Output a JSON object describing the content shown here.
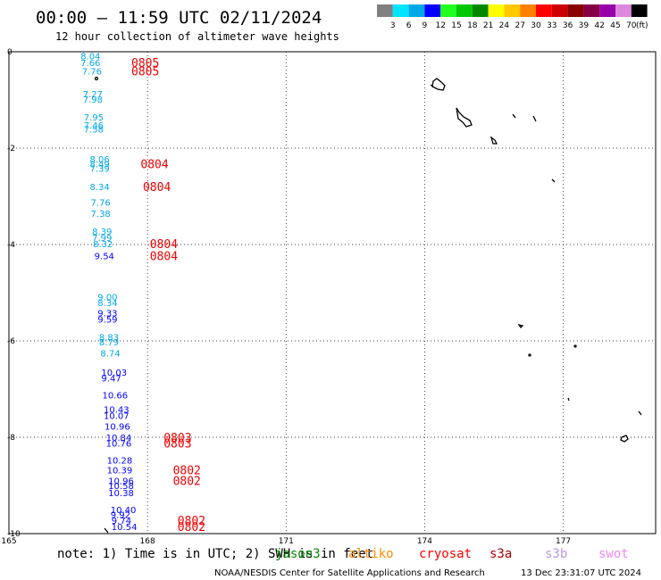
{
  "header": {
    "title": "00:00 — 11:59 UTC 02/11/2024",
    "subtitle": "12 hour collection of altimeter wave heights"
  },
  "colorbar": {
    "colors": [
      "#808080",
      "#00e5ff",
      "#00a8e8",
      "#0000ff",
      "#20ff20",
      "#00c800",
      "#008800",
      "#ffff00",
      "#ffc800",
      "#ff8000",
      "#ff0000",
      "#cc0000",
      "#880000",
      "#880044",
      "#9900aa",
      "#dd88dd",
      "#000000"
    ],
    "labels": [
      "3",
      "6",
      "9",
      "12",
      "15",
      "18",
      "21",
      "24",
      "27",
      "30",
      "33",
      "36",
      "39",
      "42",
      "45",
      "70"
    ],
    "unit": "(ft)"
  },
  "axes": {
    "x_ticks": [
      "165",
      "168",
      "171",
      "174",
      "177"
    ],
    "y_ticks": [
      "0",
      "-2",
      "-4",
      "-6",
      "-8",
      "-10"
    ],
    "lon_range": [
      165,
      179
    ],
    "lat_range": [
      -10,
      0
    ]
  },
  "observations": [
    {
      "lon": 166.55,
      "lat": -0.08,
      "value": "8.04",
      "color": "#00a8e8"
    },
    {
      "lon": 166.55,
      "lat": -0.22,
      "value": "7.66",
      "color": "#00a8e8"
    },
    {
      "lon": 166.58,
      "lat": -0.4,
      "value": "7.76",
      "color": "#00a8e8"
    },
    {
      "lon": 166.6,
      "lat": -0.87,
      "value": "7.27",
      "color": "#00a8e8"
    },
    {
      "lon": 166.6,
      "lat": -0.98,
      "value": "7.98",
      "color": "#00a8e8"
    },
    {
      "lon": 166.62,
      "lat": -1.35,
      "value": "7.95",
      "color": "#00a8e8"
    },
    {
      "lon": 166.62,
      "lat": -1.52,
      "value": "7.46",
      "color": "#00a8e8"
    },
    {
      "lon": 166.62,
      "lat": -1.6,
      "value": "7.58",
      "color": "#00a8e8"
    },
    {
      "lon": 166.75,
      "lat": -2.22,
      "value": "8.06",
      "color": "#00a8e8"
    },
    {
      "lon": 166.75,
      "lat": -2.32,
      "value": "8.49",
      "color": "#00a8e8"
    },
    {
      "lon": 166.75,
      "lat": -2.42,
      "value": "7.39",
      "color": "#00a8e8"
    },
    {
      "lon": 166.75,
      "lat": -2.8,
      "value": "8.34",
      "color": "#00a8e8"
    },
    {
      "lon": 166.77,
      "lat": -3.12,
      "value": "7.76",
      "color": "#00a8e8"
    },
    {
      "lon": 166.77,
      "lat": -3.35,
      "value": "7.38",
      "color": "#00a8e8"
    },
    {
      "lon": 166.8,
      "lat": -3.72,
      "value": "8.39",
      "color": "#00a8e8"
    },
    {
      "lon": 166.8,
      "lat": -3.85,
      "value": "7.99",
      "color": "#00a8e8"
    },
    {
      "lon": 166.82,
      "lat": -3.98,
      "value": "8.32",
      "color": "#00a8e8"
    },
    {
      "lon": 166.85,
      "lat": -4.23,
      "value": "9.54",
      "color": "#0000ff"
    },
    {
      "lon": 166.92,
      "lat": -5.08,
      "value": "9.00",
      "color": "#00a8e8"
    },
    {
      "lon": 166.92,
      "lat": -5.2,
      "value": "8.34",
      "color": "#00a8e8"
    },
    {
      "lon": 166.92,
      "lat": -5.42,
      "value": "9.33",
      "color": "#0000ff"
    },
    {
      "lon": 166.92,
      "lat": -5.55,
      "value": "9.59",
      "color": "#0000ff"
    },
    {
      "lon": 166.95,
      "lat": -5.92,
      "value": "8.83",
      "color": "#00a8e8"
    },
    {
      "lon": 166.95,
      "lat": -6.02,
      "value": "8.79",
      "color": "#00a8e8"
    },
    {
      "lon": 166.98,
      "lat": -6.25,
      "value": "8.74",
      "color": "#00a8e8"
    },
    {
      "lon": 167.0,
      "lat": -6.65,
      "value": "10.03",
      "color": "#0000ff"
    },
    {
      "lon": 167.0,
      "lat": -6.77,
      "value": "9.47",
      "color": "#0000ff"
    },
    {
      "lon": 167.02,
      "lat": -7.12,
      "value": "10.66",
      "color": "#0000ff"
    },
    {
      "lon": 167.05,
      "lat": -7.42,
      "value": "10.43",
      "color": "#0000ff"
    },
    {
      "lon": 167.05,
      "lat": -7.55,
      "value": "10.07",
      "color": "#0000ff"
    },
    {
      "lon": 167.07,
      "lat": -7.77,
      "value": "10.96",
      "color": "#0000ff"
    },
    {
      "lon": 167.1,
      "lat": -8.0,
      "value": "10.84",
      "color": "#0000ff"
    },
    {
      "lon": 167.1,
      "lat": -8.12,
      "value": "10.76",
      "color": "#0000ff"
    },
    {
      "lon": 167.12,
      "lat": -8.47,
      "value": "10.28",
      "color": "#0000ff"
    },
    {
      "lon": 167.12,
      "lat": -8.68,
      "value": "10.39",
      "color": "#0000ff"
    },
    {
      "lon": 167.15,
      "lat": -8.9,
      "value": "10.96",
      "color": "#0000ff"
    },
    {
      "lon": 167.15,
      "lat": -9.0,
      "value": "10.58",
      "color": "#0000ff"
    },
    {
      "lon": 167.15,
      "lat": -9.15,
      "value": "10.38",
      "color": "#0000ff"
    },
    {
      "lon": 167.2,
      "lat": -9.5,
      "value": "10.40",
      "color": "#0000ff"
    },
    {
      "lon": 167.2,
      "lat": -9.6,
      "value": "9.92",
      "color": "#0000ff"
    },
    {
      "lon": 167.22,
      "lat": -9.72,
      "value": "9.74",
      "color": "#0000ff"
    },
    {
      "lon": 167.22,
      "lat": -9.85,
      "value": "10.54",
      "color": "#0000ff"
    }
  ],
  "pass_labels": [
    {
      "lon": 167.65,
      "lat": -0.22,
      "text": "0805"
    },
    {
      "lon": 167.65,
      "lat": -0.4,
      "text": "0805"
    },
    {
      "lon": 167.85,
      "lat": -2.32,
      "text": "0804"
    },
    {
      "lon": 167.9,
      "lat": -2.8,
      "text": "0804"
    },
    {
      "lon": 168.05,
      "lat": -3.98,
      "text": "0804"
    },
    {
      "lon": 168.05,
      "lat": -4.23,
      "text": "0804"
    },
    {
      "lon": 168.35,
      "lat": -8.0,
      "text": "0803"
    },
    {
      "lon": 168.35,
      "lat": -8.12,
      "text": "0803"
    },
    {
      "lon": 168.55,
      "lat": -8.68,
      "text": "0802"
    },
    {
      "lon": 168.55,
      "lat": -8.9,
      "text": "0802"
    },
    {
      "lon": 168.65,
      "lat": -9.72,
      "text": "0802"
    },
    {
      "lon": 168.65,
      "lat": -9.85,
      "text": "0802"
    }
  ],
  "footer": {
    "note": "note: 1) Time is in UTC; 2) SWH is in feet",
    "satellites": [
      {
        "name": "jason3",
        "color": "#008800"
      },
      {
        "name": "altiko",
        "color": "#ff8c00"
      },
      {
        "name": "cryosat",
        "color": "#ff0000"
      },
      {
        "name": "s3a",
        "color": "#aa0000"
      },
      {
        "name": "s3b",
        "color": "#bb99ee"
      },
      {
        "name": "swot",
        "color": "#ee88ee"
      }
    ],
    "credit": "NOAA/NESDIS Center for Satellite Applications and Research",
    "timestamp": "13 Dec 23:31:07 UTC 2024"
  }
}
